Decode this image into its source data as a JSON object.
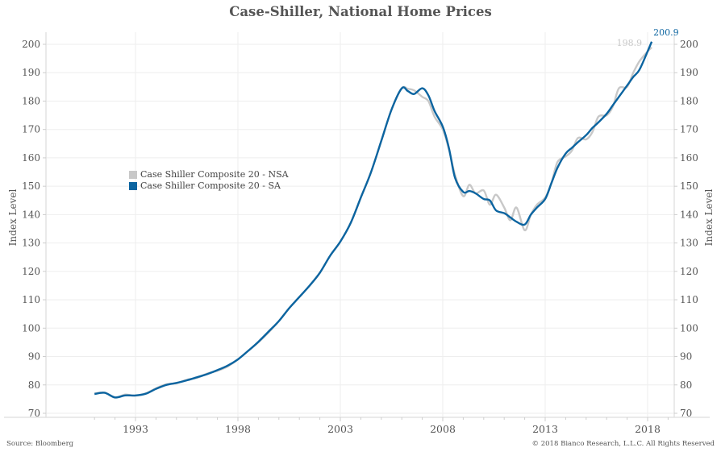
{
  "chart_data": {
    "type": "line",
    "title": "Case-Shiller, National Home Prices",
    "ylabel_left": "Index Level",
    "ylabel_right": "Index Level",
    "ylim": [
      70,
      200
    ],
    "yticks": [
      70,
      80,
      90,
      100,
      110,
      120,
      130,
      140,
      150,
      160,
      170,
      180,
      190,
      200
    ],
    "xlim": [
      1990,
      2019.3
    ],
    "xticks": [
      1993,
      1998,
      2003,
      2008,
      2013,
      2018
    ],
    "grid": true,
    "legend_position": "center-left",
    "series": [
      {
        "name": "Case Shiller Composite 20 - NSA",
        "color": "#c8c8c8",
        "last_label": "198.9",
        "x": [
          1991.0,
          1991.5,
          1992.0,
          1992.5,
          1993.0,
          1993.5,
          1994.0,
          1994.5,
          1995.0,
          1995.5,
          1996.0,
          1996.5,
          1997.0,
          1997.5,
          1998.0,
          1998.5,
          1999.0,
          1999.5,
          2000.0,
          2000.5,
          2001.0,
          2001.5,
          2002.0,
          2002.5,
          2003.0,
          2003.5,
          2004.0,
          2004.5,
          2005.0,
          2005.5,
          2006.0,
          2006.3,
          2006.6,
          2007.0,
          2007.3,
          2007.6,
          2008.0,
          2008.3,
          2008.6,
          2009.0,
          2009.3,
          2009.6,
          2010.0,
          2010.3,
          2010.6,
          2011.0,
          2011.3,
          2011.6,
          2012.0,
          2012.3,
          2012.6,
          2013.0,
          2013.3,
          2013.6,
          2014.0,
          2014.3,
          2014.6,
          2015.0,
          2015.3,
          2015.6,
          2016.0,
          2016.3,
          2016.6,
          2017.0,
          2017.3,
          2017.6,
          2018.0,
          2018.2
        ],
        "values": [
          77.0,
          77.3,
          75.5,
          76.6,
          76.2,
          77.0,
          78.8,
          80.2,
          80.6,
          81.8,
          82.5,
          84.0,
          85.0,
          86.5,
          89.0,
          92.0,
          95.0,
          98.5,
          102.5,
          107.0,
          111.0,
          115.0,
          119.5,
          125.5,
          130.5,
          137.0,
          146.0,
          155.0,
          166.0,
          177.0,
          184.5,
          184.3,
          183.8,
          181.5,
          180.0,
          174.5,
          170.0,
          163.0,
          154.0,
          146.5,
          150.5,
          147.5,
          148.5,
          143.5,
          147.0,
          142.5,
          138.0,
          142.5,
          134.5,
          140.0,
          143.5,
          146.0,
          151.0,
          158.5,
          160.5,
          162.5,
          167.0,
          166.5,
          169.0,
          174.5,
          175.0,
          178.0,
          184.5,
          185.0,
          190.0,
          194.0,
          197.5,
          198.9
        ]
      },
      {
        "name": "Case Shiller Composite 20 - SA",
        "color": "#0b64a0",
        "last_label": "200.9",
        "x": [
          1991.0,
          1991.5,
          1992.0,
          1992.5,
          1993.0,
          1993.5,
          1994.0,
          1994.5,
          1995.0,
          1995.5,
          1996.0,
          1996.5,
          1997.0,
          1997.5,
          1998.0,
          1998.5,
          1999.0,
          1999.5,
          2000.0,
          2000.5,
          2001.0,
          2001.5,
          2002.0,
          2002.5,
          2003.0,
          2003.5,
          2004.0,
          2004.5,
          2005.0,
          2005.5,
          2006.0,
          2006.3,
          2006.6,
          2007.0,
          2007.3,
          2007.6,
          2008.0,
          2008.3,
          2008.6,
          2009.0,
          2009.3,
          2009.6,
          2010.0,
          2010.3,
          2010.6,
          2011.0,
          2011.3,
          2011.6,
          2012.0,
          2012.3,
          2012.6,
          2013.0,
          2013.3,
          2013.6,
          2014.0,
          2014.3,
          2014.6,
          2015.0,
          2015.3,
          2015.6,
          2016.0,
          2016.3,
          2016.6,
          2017.0,
          2017.3,
          2017.6,
          2018.0,
          2018.2
        ],
        "values": [
          76.8,
          77.2,
          75.6,
          76.3,
          76.3,
          76.9,
          78.6,
          80.0,
          80.7,
          81.6,
          82.7,
          83.8,
          85.2,
          86.8,
          89.0,
          92.0,
          95.2,
          98.8,
          102.5,
          107.0,
          111.0,
          115.0,
          119.5,
          125.5,
          130.5,
          137.0,
          146.0,
          155.0,
          166.0,
          177.0,
          184.5,
          183.5,
          182.5,
          184.5,
          182.0,
          176.5,
          171.0,
          163.5,
          153.0,
          148.0,
          148.3,
          147.5,
          145.5,
          145.0,
          141.5,
          140.5,
          139.0,
          137.5,
          136.5,
          140.0,
          142.5,
          145.5,
          151.0,
          156.5,
          161.5,
          163.5,
          165.5,
          168.0,
          170.5,
          172.5,
          175.5,
          178.5,
          181.5,
          185.5,
          188.5,
          191.0,
          197.5,
          200.9
        ]
      }
    ]
  },
  "footer": {
    "source": "Source: Bloomberg",
    "copyright": "© 2018 Bianco Research, L.L.C. All Rights Reserved"
  }
}
